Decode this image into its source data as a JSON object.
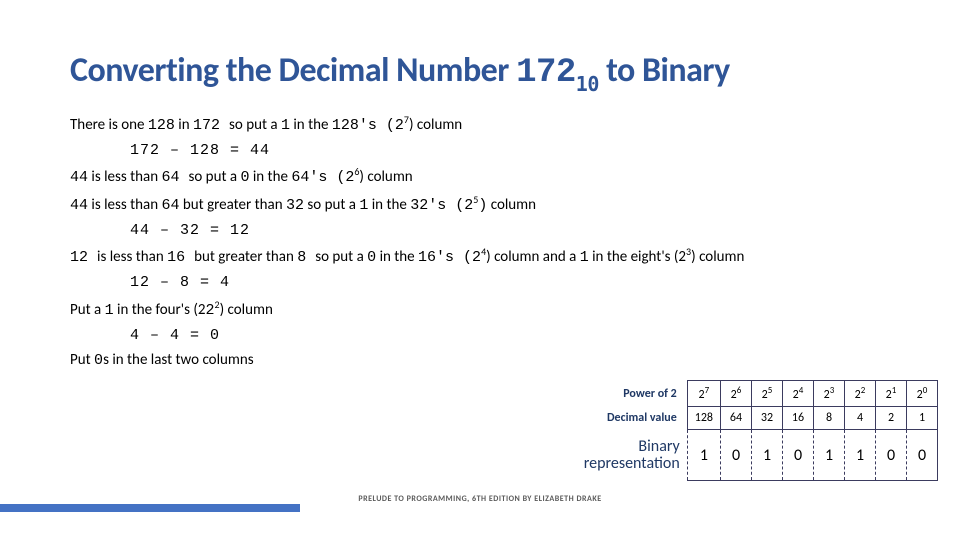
{
  "title_prefix": "Converting the Decimal Number ",
  "title_num": "172",
  "title_sub": "10",
  "title_suffix": " to Binary",
  "steps": {
    "s1a": "There is one ",
    "s1b": "128",
    "s1c": " in ",
    "s1d": "172 ",
    "s1e": "so put a ",
    "s1f": "1",
    "s1g": " in the ",
    "s1h": "128's (2",
    "s1i": ") column",
    "calc1": "172 – 128 = 44",
    "s2a": "44",
    "s2b": " is less than ",
    "s2c": "64 ",
    "s2d": "so put a ",
    "s2e": "0",
    "s2f": " in the ",
    "s2g": "64's (2",
    "s2h": ") column",
    "s3a": "44",
    "s3b": " is less than ",
    "s3c": "64",
    "s3d": " but greater than ",
    "s3e": "32",
    "s3f": " so put a ",
    "s3g": "1",
    "s3h": " in the ",
    "s3i": "32's (2",
    "s3j": ")",
    "s3k": " column",
    "calc2": "44 – 32 = 12",
    "s4a": "12 ",
    "s4b": "is less than ",
    "s4c": "16 ",
    "s4d": "but greater than ",
    "s4e": "8 ",
    "s4f": "so put a ",
    "s4g": "0",
    "s4h": " in the ",
    "s4i": "16's (2",
    "s4j": ") column and a ",
    "s4k": "1",
    "s4l": " in the eight's (2",
    "s4m": ") column",
    "calc3": "12 – 8 = 4",
    "s5a": "Put a ",
    "s5b": "1",
    "s5c": " in the four's (2",
    "s5d": ") column",
    "calc4": "4 – 4 = 0",
    "s6a": "Put ",
    "s6b": "0",
    "s6c": "s in the last two columns"
  },
  "table": {
    "row_labels": {
      "power": "Power of 2",
      "decimal": "Decimal value",
      "binary_l1": "Binary",
      "binary_l2": "representation"
    },
    "power_base": "2",
    "power_exp": [
      "7",
      "6",
      "5",
      "4",
      "3",
      "2",
      "1",
      "0"
    ],
    "decimal": [
      "128",
      "64",
      "32",
      "16",
      "8",
      "4",
      "2",
      "1"
    ],
    "binary": [
      "1",
      "0",
      "1",
      "0",
      "1",
      "1",
      "0",
      "0"
    ],
    "colors": {
      "border": "#3b3b5f",
      "header_text": "#1f3864"
    }
  },
  "footer": "PRELUDE TO PROGRAMMING, 6TH EDITION BY ELIZABETH DRAKE",
  "accent_bar_color": "#4472c4"
}
